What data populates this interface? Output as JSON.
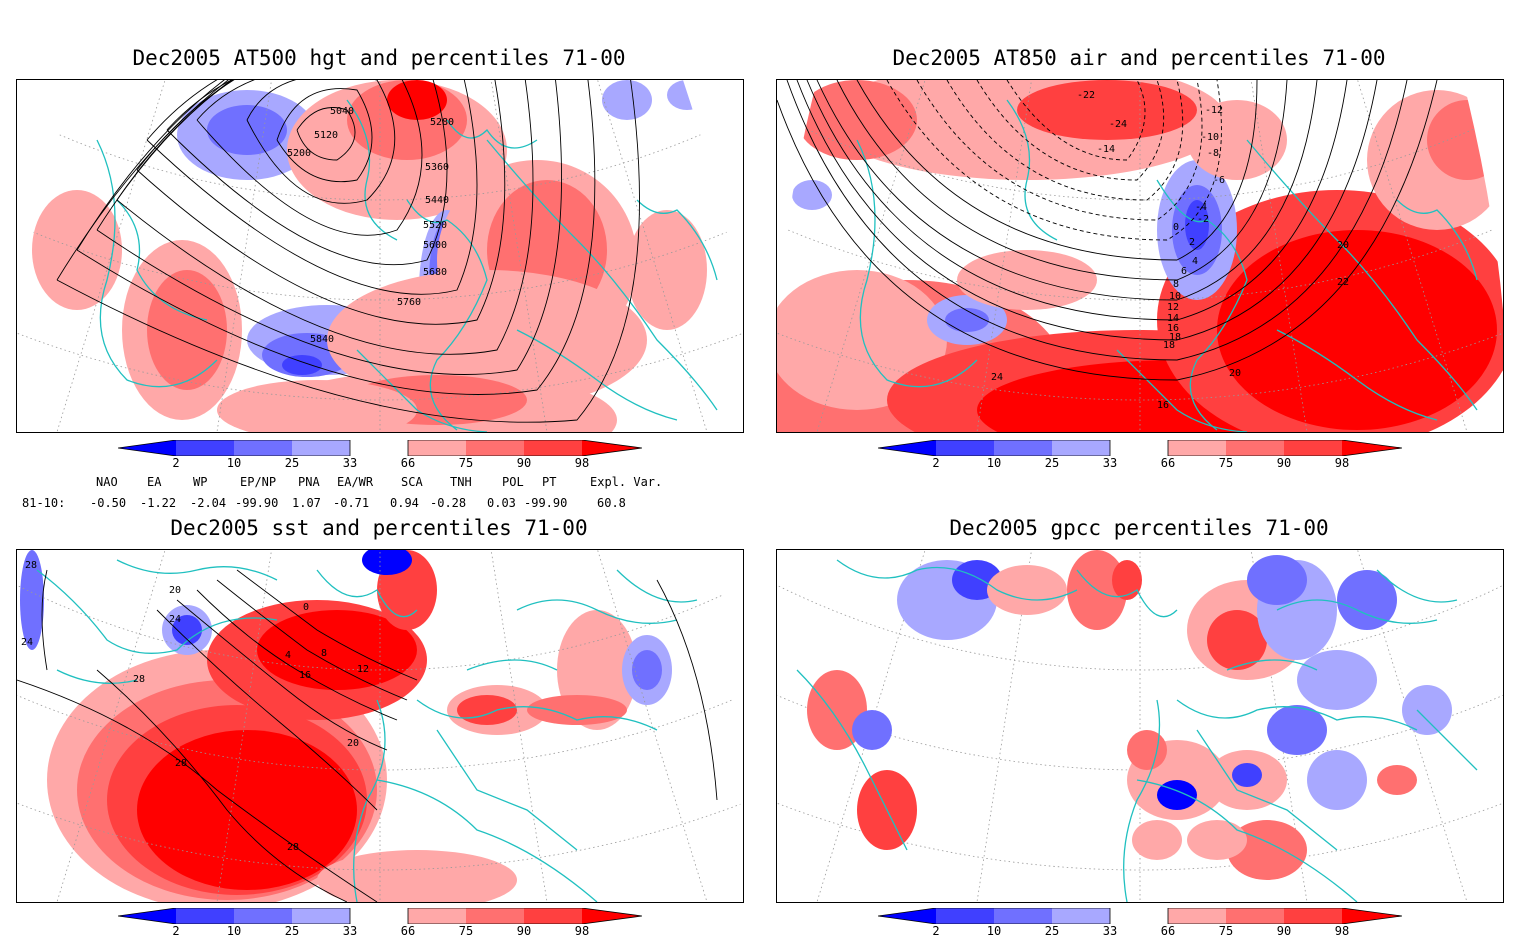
{
  "panels": [
    {
      "id": "p1",
      "title": "Dec2005 AT500 hgt and percentiles 71-00",
      "contour_labels": [
        "5040",
        "5120",
        "5200",
        "5280",
        "5360",
        "5440",
        "5520",
        "5600",
        "5680",
        "5760",
        "5840"
      ]
    },
    {
      "id": "p2",
      "title": "Dec2005 AT850 air and percentiles 71-00",
      "contour_labels": [
        "-22",
        "-24",
        "-14",
        "-12",
        "-10",
        "-8",
        "-6",
        "-4",
        "-2",
        "0",
        "2",
        "4",
        "6",
        "8",
        "10",
        "12",
        "14",
        "16",
        "18",
        "20",
        "22",
        "24",
        "16",
        "18",
        "20"
      ]
    },
    {
      "id": "p3",
      "title": "Dec2005 sst and percentiles 71-00",
      "contour_labels": [
        "28",
        "24",
        "20",
        "0",
        "4",
        "8",
        "12",
        "16",
        "20",
        "24",
        "28",
        "28",
        "28"
      ]
    },
    {
      "id": "p4",
      "title": "Dec2005 gpcc percentiles 71-00",
      "contour_labels": []
    }
  ],
  "colorbar": {
    "ticks": [
      "2",
      "10",
      "25",
      "33",
      "66",
      "75",
      "90",
      "98"
    ],
    "colors": {
      "deep_blue": "#0000ff",
      "mid_blue": "#4040ff",
      "light_blue": "#7070ff",
      "pale_blue": "#a8a8ff",
      "pale_red": "#ffa8a8",
      "light_red": "#ff7070",
      "mid_red": "#ff4040",
      "deep_red": "#ff0000"
    }
  },
  "teleconnections": {
    "header": [
      "NAO",
      "EA",
      "WP",
      "EP/NP",
      "PNA",
      "EA/WR",
      "SCA",
      "TNH",
      "POL",
      "PT",
      "Expl. Var."
    ],
    "row_label": "81-10:",
    "values": [
      "-0.50",
      "-1.22",
      "-2.04",
      "-99.90",
      "1.07",
      "-0.71",
      "0.94",
      "-0.28",
      "0.03",
      "-99.90",
      "60.8"
    ]
  },
  "colors": {
    "coast": "#20c0c0",
    "grid": "#999999",
    "contour": "#000000"
  }
}
